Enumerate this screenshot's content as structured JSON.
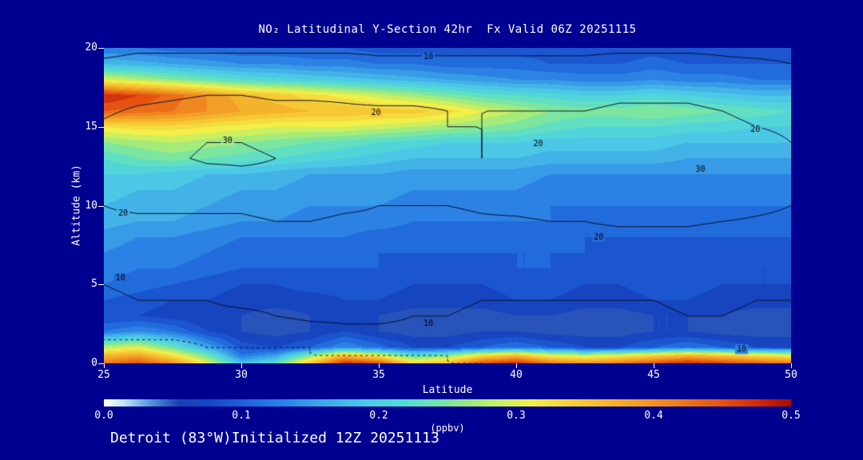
{
  "title": "NO₂ Latitudinal Y-Section 42hr  Fx Valid 06Z 20251115",
  "footer": "Detroit (83°W)Initialized 12Z 20251113",
  "colors": {
    "background": "#000090",
    "text": "#ffffff"
  },
  "chart_data": {
    "type": "heatmap",
    "title": "NO₂ Latitudinal Y-Section 42hr  Fx Valid 06Z 20251115",
    "xlabel": "Latitude",
    "ylabel": "Altitude (km)",
    "xlim": [
      25,
      50
    ],
    "ylim": [
      0,
      20
    ],
    "x_ticks": [
      25,
      30,
      35,
      40,
      45,
      50
    ],
    "y_ticks": [
      0,
      5,
      10,
      15,
      20
    ],
    "lat": [
      25,
      26.25,
      27.5,
      28.75,
      30,
      31.25,
      32.5,
      33.75,
      35,
      36.25,
      37.5,
      38.75,
      40,
      41.25,
      42.5,
      43.75,
      45,
      46.25,
      47.5,
      48.75,
      50
    ],
    "alt": [
      0,
      0.5,
      1,
      2,
      3,
      4,
      5,
      6,
      7,
      8,
      9,
      10,
      11,
      12,
      13,
      14,
      15,
      16,
      17,
      18,
      19,
      20
    ],
    "no2_ppbv": [
      [
        0.42,
        0.45,
        0.4,
        0.3,
        0.18,
        0.22,
        0.35,
        0.48,
        0.45,
        0.33,
        0.36,
        0.45,
        0.48,
        0.42,
        0.4,
        0.42,
        0.45,
        0.48,
        0.46,
        0.44,
        0.42
      ],
      [
        0.36,
        0.38,
        0.32,
        0.24,
        0.12,
        0.15,
        0.25,
        0.35,
        0.3,
        0.22,
        0.25,
        0.32,
        0.35,
        0.3,
        0.28,
        0.3,
        0.33,
        0.36,
        0.34,
        0.32,
        0.3
      ],
      [
        0.28,
        0.3,
        0.24,
        0.16,
        0.09,
        0.08,
        0.1,
        0.14,
        0.11,
        0.08,
        0.08,
        0.1,
        0.12,
        0.1,
        0.08,
        0.08,
        0.1,
        0.12,
        0.1,
        0.08,
        0.08
      ],
      [
        0.12,
        0.14,
        0.12,
        0.08,
        0.06,
        0.05,
        0.06,
        0.08,
        0.06,
        0.05,
        0.05,
        0.06,
        0.06,
        0.05,
        0.05,
        0.05,
        0.06,
        0.06,
        0.05,
        0.05,
        0.05
      ],
      [
        0.08,
        0.08,
        0.07,
        0.06,
        0.06,
        0.05,
        0.06,
        0.06,
        0.06,
        0.05,
        0.05,
        0.05,
        0.06,
        0.06,
        0.05,
        0.05,
        0.06,
        0.06,
        0.06,
        0.05,
        0.05
      ],
      [
        0.1,
        0.09,
        0.08,
        0.08,
        0.07,
        0.07,
        0.07,
        0.08,
        0.08,
        0.07,
        0.07,
        0.07,
        0.08,
        0.08,
        0.07,
        0.07,
        0.08,
        0.08,
        0.07,
        0.07,
        0.07
      ],
      [
        0.12,
        0.11,
        0.1,
        0.09,
        0.08,
        0.08,
        0.09,
        0.09,
        0.09,
        0.08,
        0.08,
        0.08,
        0.09,
        0.09,
        0.08,
        0.08,
        0.09,
        0.09,
        0.08,
        0.08,
        0.08
      ],
      [
        0.13,
        0.12,
        0.12,
        0.11,
        0.1,
        0.1,
        0.1,
        0.1,
        0.1,
        0.09,
        0.09,
        0.09,
        0.1,
        0.1,
        0.09,
        0.09,
        0.09,
        0.09,
        0.09,
        0.08,
        0.08
      ],
      [
        0.14,
        0.13,
        0.13,
        0.12,
        0.11,
        0.11,
        0.11,
        0.11,
        0.1,
        0.1,
        0.1,
        0.1,
        0.1,
        0.1,
        0.1,
        0.09,
        0.09,
        0.09,
        0.09,
        0.09,
        0.09
      ],
      [
        0.15,
        0.14,
        0.14,
        0.13,
        0.12,
        0.12,
        0.12,
        0.12,
        0.11,
        0.11,
        0.11,
        0.11,
        0.11,
        0.11,
        0.1,
        0.1,
        0.1,
        0.1,
        0.1,
        0.1,
        0.1
      ],
      [
        0.17,
        0.16,
        0.16,
        0.15,
        0.14,
        0.14,
        0.13,
        0.13,
        0.13,
        0.12,
        0.12,
        0.12,
        0.12,
        0.12,
        0.11,
        0.11,
        0.11,
        0.11,
        0.11,
        0.11,
        0.11
      ],
      [
        0.18,
        0.17,
        0.17,
        0.16,
        0.15,
        0.15,
        0.14,
        0.14,
        0.14,
        0.13,
        0.13,
        0.13,
        0.13,
        0.12,
        0.12,
        0.12,
        0.12,
        0.12,
        0.12,
        0.12,
        0.12
      ],
      [
        0.19,
        0.18,
        0.18,
        0.17,
        0.16,
        0.16,
        0.15,
        0.15,
        0.15,
        0.14,
        0.14,
        0.14,
        0.14,
        0.13,
        0.13,
        0.13,
        0.13,
        0.13,
        0.13,
        0.13,
        0.13
      ],
      [
        0.2,
        0.2,
        0.19,
        0.18,
        0.18,
        0.17,
        0.16,
        0.16,
        0.16,
        0.15,
        0.15,
        0.15,
        0.15,
        0.14,
        0.14,
        0.14,
        0.14,
        0.14,
        0.14,
        0.14,
        0.14
      ],
      [
        0.22,
        0.24,
        0.25,
        0.24,
        0.23,
        0.22,
        0.21,
        0.2,
        0.19,
        0.18,
        0.18,
        0.18,
        0.18,
        0.17,
        0.17,
        0.17,
        0.17,
        0.16,
        0.16,
        0.16,
        0.16
      ],
      [
        0.26,
        0.27,
        0.28,
        0.27,
        0.26,
        0.25,
        0.24,
        0.23,
        0.22,
        0.21,
        0.2,
        0.2,
        0.2,
        0.19,
        0.19,
        0.19,
        0.19,
        0.18,
        0.18,
        0.18,
        0.18
      ],
      [
        0.32,
        0.33,
        0.33,
        0.32,
        0.31,
        0.3,
        0.3,
        0.3,
        0.29,
        0.28,
        0.27,
        0.26,
        0.25,
        0.23,
        0.22,
        0.22,
        0.22,
        0.21,
        0.21,
        0.2,
        0.2
      ],
      [
        0.44,
        0.43,
        0.42,
        0.4,
        0.38,
        0.37,
        0.36,
        0.36,
        0.35,
        0.35,
        0.33,
        0.3,
        0.28,
        0.26,
        0.25,
        0.25,
        0.26,
        0.25,
        0.24,
        0.23,
        0.22
      ],
      [
        0.48,
        0.46,
        0.43,
        0.4,
        0.37,
        0.35,
        0.33,
        0.31,
        0.29,
        0.27,
        0.25,
        0.23,
        0.22,
        0.21,
        0.2,
        0.2,
        0.21,
        0.2,
        0.19,
        0.18,
        0.18
      ],
      [
        0.3,
        0.28,
        0.26,
        0.24,
        0.22,
        0.21,
        0.2,
        0.19,
        0.18,
        0.17,
        0.16,
        0.15,
        0.14,
        0.14,
        0.13,
        0.13,
        0.14,
        0.13,
        0.13,
        0.12,
        0.12
      ],
      [
        0.18,
        0.17,
        0.16,
        0.15,
        0.14,
        0.14,
        0.13,
        0.13,
        0.12,
        0.12,
        0.11,
        0.11,
        0.11,
        0.1,
        0.1,
        0.1,
        0.11,
        0.1,
        0.1,
        0.1,
        0.1
      ],
      [
        0.12,
        0.12,
        0.11,
        0.11,
        0.1,
        0.1,
        0.1,
        0.1,
        0.09,
        0.09,
        0.09,
        0.09,
        0.09,
        0.09,
        0.08,
        0.08,
        0.09,
        0.08,
        0.08,
        0.08,
        0.08
      ]
    ],
    "contours": {
      "levels": [
        10,
        20,
        30
      ],
      "dashed_levels": [
        5
      ],
      "line_color": "#0a1024",
      "label_color": "#000000",
      "grid": [
        [
          3,
          3,
          3,
          4,
          4,
          4,
          4,
          5,
          5,
          5,
          5,
          5,
          6,
          6,
          7,
          8,
          9,
          10,
          10,
          9,
          8
        ],
        [
          3,
          3,
          4,
          4,
          4,
          4,
          5,
          5,
          5,
          5,
          5,
          6,
          6,
          6,
          7,
          8,
          9,
          10,
          10,
          9,
          8
        ],
        [
          4,
          4,
          4,
          5,
          5,
          5,
          5,
          6,
          6,
          6,
          6,
          6,
          7,
          7,
          7,
          8,
          9,
          10,
          10,
          9,
          8
        ],
        [
          6,
          6,
          6,
          6,
          7,
          7,
          8,
          9,
          9,
          9,
          8,
          8,
          8,
          8,
          8,
          8,
          8,
          9,
          9,
          8,
          8
        ],
        [
          8,
          8,
          8,
          9,
          9,
          10,
          11,
          11,
          11,
          10,
          10,
          9,
          9,
          9,
          9,
          9,
          9,
          10,
          10,
          9,
          9
        ],
        [
          9,
          10,
          10,
          10,
          11,
          11,
          12,
          12,
          12,
          11,
          11,
          10,
          10,
          10,
          10,
          10,
          10,
          11,
          11,
          10,
          10
        ],
        [
          10,
          11,
          11,
          12,
          12,
          12,
          13,
          13,
          13,
          12,
          12,
          11,
          11,
          11,
          11,
          11,
          11,
          12,
          12,
          11,
          11
        ],
        [
          12,
          13,
          13,
          13,
          14,
          14,
          14,
          14,
          14,
          13,
          13,
          13,
          13,
          13,
          13,
          13,
          13,
          14,
          13,
          13,
          12
        ],
        [
          15,
          15,
          15,
          15,
          15,
          16,
          16,
          16,
          15,
          15,
          15,
          15,
          15,
          15,
          15,
          15,
          15,
          15,
          15,
          14,
          14
        ],
        [
          17,
          17,
          17,
          17,
          17,
          18,
          18,
          17,
          17,
          17,
          17,
          17,
          17,
          18,
          18,
          18,
          18,
          18,
          17,
          16,
          16
        ],
        [
          19,
          19,
          19,
          19,
          19,
          20,
          20,
          19,
          19,
          18,
          18,
          19,
          19,
          20,
          20,
          21,
          21,
          21,
          20,
          19,
          18
        ],
        [
          20,
          21,
          21,
          21,
          21,
          22,
          22,
          21,
          20,
          20,
          20,
          21,
          22,
          23,
          24,
          25,
          25,
          25,
          24,
          22,
          20
        ],
        [
          21,
          22,
          23,
          25,
          26,
          26,
          25,
          23,
          22,
          21,
          21,
          22,
          24,
          26,
          28,
          29,
          30,
          30,
          28,
          25,
          22
        ],
        [
          21,
          23,
          26,
          28,
          29,
          29,
          27,
          25,
          23,
          22,
          21,
          21,
          22,
          26,
          28,
          29,
          30,
          29,
          27,
          24,
          21
        ],
        [
          22,
          26,
          29,
          31,
          31,
          30,
          28,
          26,
          24,
          22,
          21,
          20,
          21,
          23,
          24,
          25,
          26,
          26,
          25,
          23,
          21
        ],
        [
          23,
          26,
          28,
          30,
          30,
          29,
          27,
          25,
          24,
          22,
          21,
          20,
          21,
          22,
          23,
          23,
          24,
          24,
          23,
          22,
          20
        ],
        [
          21,
          23,
          25,
          26,
          26,
          25,
          24,
          23,
          22,
          22,
          20,
          20,
          21,
          21,
          21,
          22,
          22,
          22,
          21,
          20,
          19
        ],
        [
          19,
          21,
          22,
          23,
          23,
          22,
          22,
          21,
          21,
          21,
          20,
          20,
          20,
          20,
          20,
          21,
          21,
          21,
          20,
          19,
          18
        ],
        [
          17,
          18,
          19,
          20,
          20,
          19,
          19,
          19,
          18,
          18,
          18,
          18,
          18,
          18,
          18,
          19,
          19,
          19,
          18,
          17,
          16
        ],
        [
          14,
          15,
          16,
          16,
          16,
          16,
          16,
          15,
          15,
          15,
          15,
          15,
          15,
          15,
          15,
          16,
          16,
          15,
          15,
          14,
          13
        ],
        [
          11,
          12,
          12,
          12,
          12,
          12,
          12,
          12,
          11,
          11,
          11,
          11,
          11,
          11,
          11,
          12,
          12,
          12,
          11,
          11,
          10
        ],
        [
          8,
          9,
          9,
          9,
          9,
          9,
          9,
          9,
          9,
          9,
          9,
          9,
          9,
          9,
          9,
          9,
          9,
          9,
          9,
          8,
          8
        ]
      ]
    },
    "contour_labels": [
      {
        "text": "10",
        "lat": 36.8,
        "alt": 19.4
      },
      {
        "text": "20",
        "lat": 34.9,
        "alt": 15.9
      },
      {
        "text": "30",
        "lat": 29.5,
        "alt": 14.1
      },
      {
        "text": "20",
        "lat": 40.8,
        "alt": 13.9
      },
      {
        "text": "20",
        "lat": 48.7,
        "alt": 14.8
      },
      {
        "text": "30",
        "lat": 46.7,
        "alt": 12.3
      },
      {
        "text": "20",
        "lat": 25.7,
        "alt": 9.5
      },
      {
        "text": "20",
        "lat": 43.0,
        "alt": 8.0
      },
      {
        "text": "10",
        "lat": 25.6,
        "alt": 5.4
      },
      {
        "text": "10",
        "lat": 36.8,
        "alt": 2.5
      },
      {
        "text": "10",
        "lat": 48.2,
        "alt": 0.9
      }
    ],
    "colorbar": {
      "min": 0.0,
      "max": 0.5,
      "ticks": [
        "0.0",
        "0.1",
        "0.2",
        "0.3",
        "0.4",
        "0.5"
      ],
      "units": "(ppbv)",
      "stops": [
        [
          0.0,
          "#ffffff"
        ],
        [
          0.015,
          "#b9e3f7"
        ],
        [
          0.035,
          "#4f8fd6"
        ],
        [
          0.055,
          "#1a3fb0"
        ],
        [
          0.075,
          "#1646c4"
        ],
        [
          0.1,
          "#1e5fd8"
        ],
        [
          0.13,
          "#2b82e4"
        ],
        [
          0.16,
          "#3fa8e8"
        ],
        [
          0.19,
          "#4cc8e6"
        ],
        [
          0.22,
          "#55dcd2"
        ],
        [
          0.25,
          "#7ce6a0"
        ],
        [
          0.28,
          "#b9ee6a"
        ],
        [
          0.31,
          "#f2ee4a"
        ],
        [
          0.35,
          "#f6c835"
        ],
        [
          0.4,
          "#f29322"
        ],
        [
          0.45,
          "#e55312"
        ],
        [
          0.48,
          "#cc2508"
        ],
        [
          0.5,
          "#a50d00"
        ]
      ]
    }
  }
}
